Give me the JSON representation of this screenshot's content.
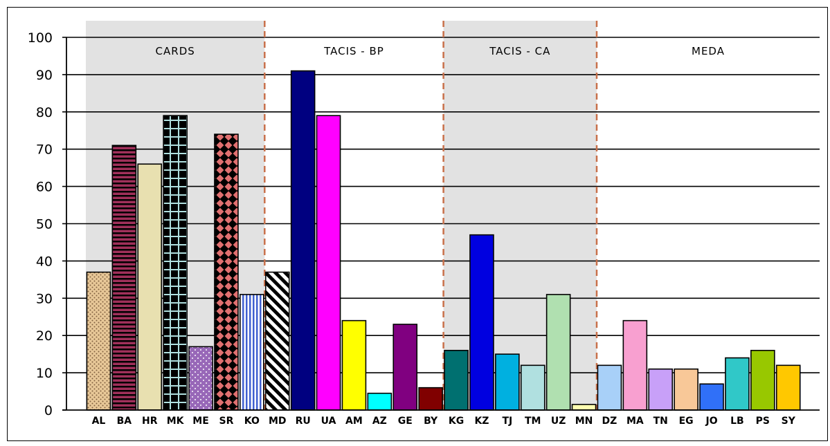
{
  "chart_data": {
    "type": "bar",
    "title": "",
    "xlabel": "",
    "ylabel": "",
    "ylim": [
      0,
      100
    ],
    "yticks": [
      0,
      10,
      20,
      30,
      40,
      50,
      60,
      70,
      80,
      90,
      100
    ],
    "grid": true,
    "groups": [
      {
        "label": "CARDS",
        "shaded": true,
        "categories": [
          "AL",
          "BA",
          "HR",
          "MK",
          "ME",
          "SR",
          "KO"
        ]
      },
      {
        "label": "TACIS - BP",
        "shaded": false,
        "categories": [
          "MD",
          "RU",
          "UA",
          "AM",
          "AZ",
          "GE",
          "BY"
        ]
      },
      {
        "label": "TACIS - CA",
        "shaded": true,
        "categories": [
          "KG",
          "KZ",
          "TJ",
          "TM",
          "UZ",
          "MN"
        ]
      },
      {
        "label": "MEDA",
        "shaded": false,
        "categories": [
          "DZ",
          "MA",
          "TN",
          "EG",
          "JO",
          "LB",
          "PS",
          "SY"
        ]
      }
    ],
    "categories": [
      "AL",
      "BA",
      "HR",
      "MK",
      "ME",
      "SR",
      "KO",
      "MD",
      "RU",
      "UA",
      "AM",
      "AZ",
      "GE",
      "BY",
      "KG",
      "KZ",
      "TJ",
      "TM",
      "UZ",
      "MN",
      "DZ",
      "MA",
      "TN",
      "EG",
      "JO",
      "LB",
      "PS",
      "SY"
    ],
    "values": [
      37,
      71,
      66,
      79,
      17,
      74,
      31,
      37,
      91,
      79,
      24,
      4.5,
      23,
      6,
      16,
      47,
      15,
      12,
      31,
      1.5,
      12,
      24,
      11,
      11,
      7,
      14,
      16,
      12
    ],
    "colors": [
      "#e8c898",
      "#a0305a",
      "#e8e0b0",
      "#000000",
      "#9868b8",
      "#e07070",
      "#7090e0",
      "#ffffff",
      "#000080",
      "#ff00ff",
      "#ffff00",
      "#00ffff",
      "#800080",
      "#800000",
      "#007070",
      "#0000e0",
      "#00b0e0",
      "#b0e0e0",
      "#b0e0b0",
      "#ffffb0",
      "#a8d0f8",
      "#f8a0d0",
      "#c8a0f8",
      "#f8c898",
      "#3070f8",
      "#30c8c8",
      "#98c800",
      "#ffc800"
    ],
    "patterns": [
      "dots-dense",
      "stripes-h",
      "none",
      "grid",
      "dots",
      "diamonds",
      "stripes-v",
      "stripes-diag",
      "none",
      "none",
      "none",
      "none",
      "none",
      "none",
      "none",
      "none",
      "none",
      "none",
      "none",
      "none",
      "none",
      "none",
      "none",
      "none",
      "none",
      "none",
      "none",
      "none"
    ]
  }
}
